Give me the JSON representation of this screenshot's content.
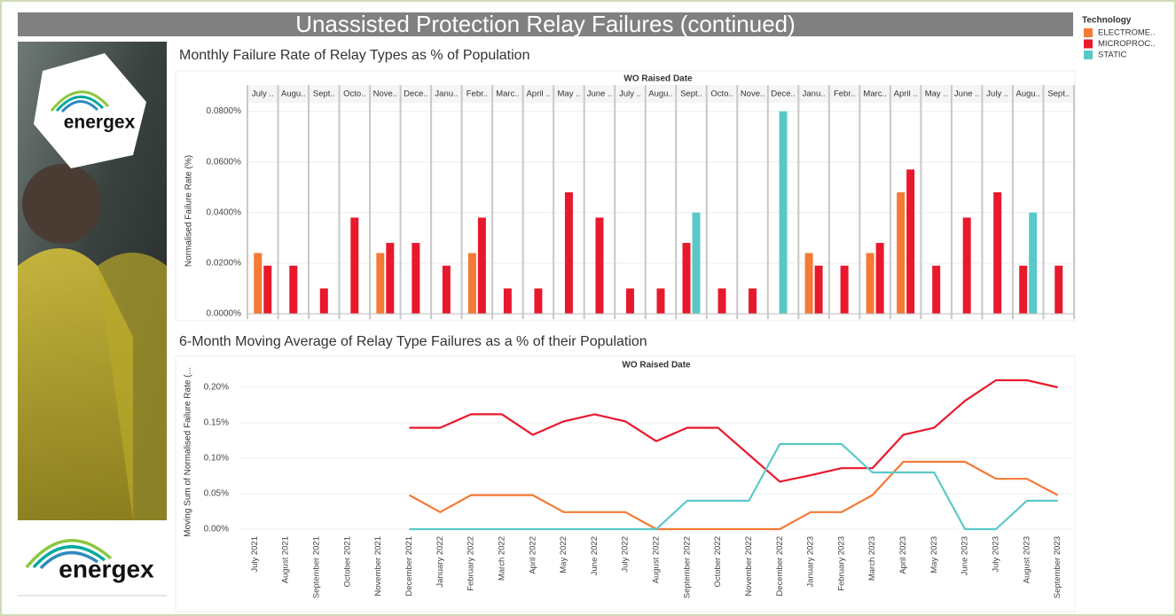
{
  "title": "Unassisted Protection Relay Failures (continued)",
  "legend": {
    "title": "Technology"
  },
  "logos": [
    "energex",
    "energex"
  ],
  "chart_data": [
    {
      "type": "bar",
      "title": "Monthly Failure Rate of Relay Types as % of Population",
      "x_label": "WO Raised Date",
      "y_label": "Normalised Failure Rate (%)",
      "categories": [
        "July ..",
        "Augu..",
        "Sept..",
        "Octo..",
        "Nove..",
        "Dece..",
        "Janu..",
        "Febr..",
        "Marc..",
        "April ..",
        "May ..",
        "June ..",
        "July ..",
        "Augu..",
        "Sept..",
        "Octo..",
        "Nove..",
        "Dece..",
        "Janu..",
        "Febr..",
        "Marc..",
        "April ..",
        "May ..",
        "June ..",
        "July ..",
        "Augu..",
        "Sept.."
      ],
      "series": [
        {
          "name": "ELECTROME..",
          "color": "#f47a36",
          "values": [
            0.024,
            null,
            null,
            null,
            0.024,
            null,
            null,
            0.024,
            null,
            null,
            null,
            null,
            null,
            null,
            null,
            null,
            null,
            null,
            0.024,
            null,
            0.024,
            0.048,
            null,
            null,
            null,
            null,
            null
          ]
        },
        {
          "name": "MICROPROC..",
          "color": "#e8192c",
          "values": [
            0.019,
            0.019,
            0.01,
            0.038,
            0.028,
            0.028,
            0.019,
            0.038,
            0.01,
            0.01,
            0.048,
            0.038,
            0.01,
            0.01,
            0.028,
            0.01,
            0.01,
            null,
            0.019,
            0.019,
            0.028,
            0.057,
            0.019,
            0.038,
            0.048,
            0.019,
            0.019
          ]
        },
        {
          "name": "STATIC",
          "color": "#5bc8c8",
          "values": [
            null,
            null,
            null,
            null,
            null,
            null,
            null,
            null,
            null,
            null,
            null,
            null,
            null,
            null,
            0.04,
            null,
            null,
            0.08,
            null,
            null,
            null,
            null,
            null,
            null,
            null,
            0.04,
            null
          ]
        }
      ],
      "ylim": [
        0,
        0.083
      ],
      "yticks": [
        {
          "value": 0,
          "label": "0.0000%"
        },
        {
          "value": 0.02,
          "label": "0.0200%"
        },
        {
          "value": 0.04,
          "label": "0.0400%"
        },
        {
          "value": 0.06,
          "label": "0.0600%"
        },
        {
          "value": 0.08,
          "label": "0.0800%"
        }
      ],
      "grid": true
    },
    {
      "type": "line",
      "title": "6-Month Moving Average of Relay Type Failures as a % of their Population",
      "x_label": "WO Raised Date",
      "y_label": "Moving Sum of Normalised Failure Rate (...",
      "categories": [
        "July 2021",
        "August 2021",
        "September 2021",
        "October 2021",
        "November 2021",
        "December 2021",
        "January 2022",
        "February 2022",
        "March 2022",
        "April 2022",
        "May 2022",
        "June 2022",
        "July 2022",
        "August 2022",
        "September 2022",
        "October 2022",
        "November 2022",
        "December 2022",
        "January 2023",
        "February 2023",
        "March 2023",
        "April 2023",
        "May 2023",
        "June 2023",
        "July 2023",
        "August 2023",
        "September 2023"
      ],
      "series": [
        {
          "color": "#f47a36",
          "values": [
            null,
            null,
            null,
            null,
            null,
            0.048,
            0.024,
            0.048,
            0.048,
            0.048,
            0.024,
            0.024,
            0.024,
            0,
            0,
            0,
            0,
            0,
            0.024,
            0.024,
            0.048,
            0.095,
            0.095,
            0.095,
            0.071,
            0.071,
            0.048
          ]
        },
        {
          "color": "#e8192c",
          "values": [
            null,
            null,
            null,
            null,
            null,
            0.143,
            0.143,
            0.162,
            0.162,
            0.133,
            0.152,
            0.162,
            0.152,
            0.124,
            0.143,
            0.143,
            0.105,
            0.067,
            0.076,
            0.086,
            0.086,
            0.133,
            0.143,
            0.181,
            0.21,
            0.21,
            0.2
          ]
        },
        {
          "color": "#5bc8c8",
          "values": [
            null,
            null,
            null,
            null,
            null,
            0,
            0,
            0,
            0,
            0,
            0,
            0,
            0,
            0,
            0.04,
            0.04,
            0.04,
            0.12,
            0.12,
            0.12,
            0.08,
            0.08,
            0.08,
            0,
            0,
            0.04,
            0.04
          ]
        }
      ],
      "ylim": [
        0,
        0.22
      ],
      "yticks": [
        {
          "value": 0,
          "label": "0.00%"
        },
        {
          "value": 0.05,
          "label": "0.05%"
        },
        {
          "value": 0.1,
          "label": "0.10%"
        },
        {
          "value": 0.15,
          "label": "0.15%"
        },
        {
          "value": 0.2,
          "label": "0.20%"
        }
      ],
      "grid": true
    }
  ]
}
